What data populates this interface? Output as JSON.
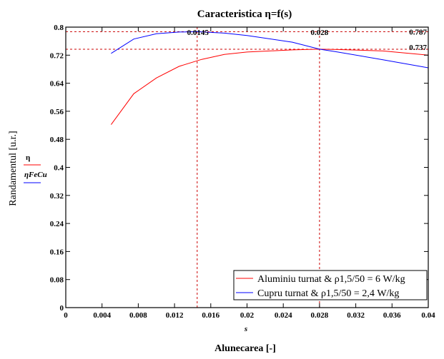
{
  "chart_data": {
    "type": "line",
    "title": "Caracteristica η=f(s)",
    "xlabel": "Alunecarea [-]",
    "x_var_label": "s",
    "ylabel": "Randamentul [u.r.]",
    "y_var_labels": [
      "η",
      "ηFeCu"
    ],
    "xlim": [
      0,
      0.04
    ],
    "ylim": [
      0,
      0.8
    ],
    "x_ticks": [
      "0",
      "0.004",
      "0.008",
      "0.012",
      "0.016",
      "0.02",
      "0.024",
      "0.028",
      "0.032",
      "0.036",
      "0.04"
    ],
    "y_ticks": [
      "0",
      "0.08",
      "0.16",
      "0.24",
      "0.32",
      "0.4",
      "0.48",
      "0.56",
      "0.64",
      "0.72",
      "0.8"
    ],
    "grid": false,
    "legend_position": "bottom-right",
    "series": [
      {
        "name": "Aluminiu turnat & ρ1,5/50 = 6 W/kg",
        "color": "#ff0000",
        "x": [
          0.005,
          0.0075,
          0.01,
          0.0125,
          0.015,
          0.0175,
          0.02,
          0.025,
          0.028,
          0.03,
          0.035,
          0.04
        ],
        "y": [
          0.522,
          0.61,
          0.655,
          0.688,
          0.708,
          0.722,
          0.729,
          0.735,
          0.737,
          0.736,
          0.732,
          0.72
        ]
      },
      {
        "name": "Cupru turnat & ρ1,5/50 = 2,4 W/kg",
        "color": "#0000ff",
        "x": [
          0.005,
          0.0075,
          0.01,
          0.0125,
          0.0145,
          0.0175,
          0.02,
          0.025,
          0.028,
          0.03,
          0.035,
          0.04
        ],
        "y": [
          0.725,
          0.766,
          0.781,
          0.786,
          0.787,
          0.783,
          0.776,
          0.757,
          0.737,
          0.729,
          0.707,
          0.684
        ]
      }
    ],
    "markers": {
      "vertical": [
        0.0145,
        0.028
      ],
      "horizontal": [
        0.787,
        0.737
      ],
      "labels": {
        "v1": "0.0145",
        "v2": "0.028",
        "h1": "0.787",
        "h2": "0.737"
      },
      "color": "#cc0000"
    }
  }
}
